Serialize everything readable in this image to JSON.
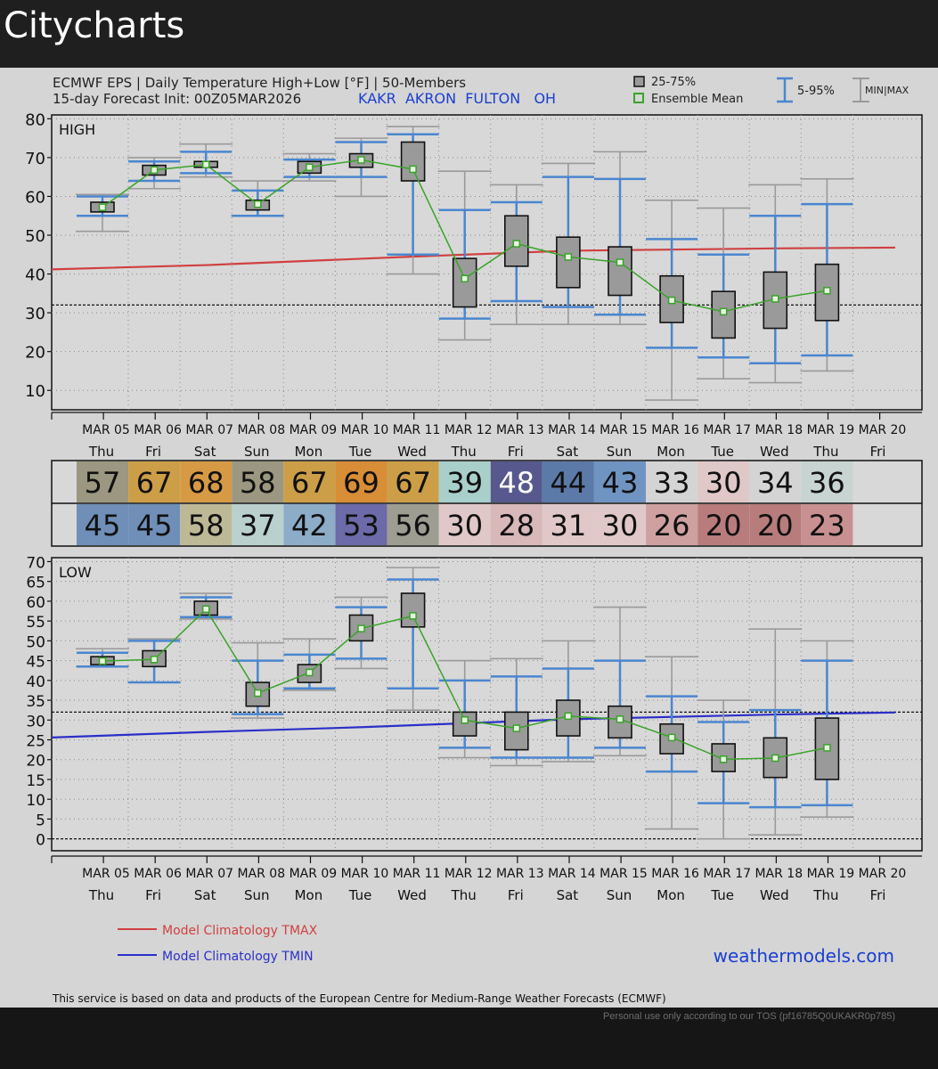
{
  "app": {
    "title": "Citycharts"
  },
  "header": {
    "line1": "ECMWF EPS | Daily Temperature High+Low [°F] | 50-Members",
    "line2": "15-day Forecast Init: 00Z05MAR2026",
    "station": "KAKR  AKRON  FULTON   OH"
  },
  "legend": {
    "box": "25-75%",
    "mean": "Ensemble Mean",
    "whisker": "5-95%",
    "minmax": "MIN|MAX"
  },
  "colors": {
    "mean": "#3aa32a",
    "box": "#9a9a9a",
    "whisker": "#4a86cf",
    "minmax": "#9a9a9a",
    "tmax": "#d04040",
    "tmin": "#2a30c8",
    "weekend": "#1a3fd0"
  },
  "days": {
    "dates": [
      "MAR 05",
      "MAR 06",
      "MAR 07",
      "MAR 08",
      "MAR 09",
      "MAR 10",
      "MAR 11",
      "MAR 12",
      "MAR 13",
      "MAR 14",
      "MAR 15",
      "MAR 16",
      "MAR 17",
      "MAR 18",
      "MAR 19",
      "MAR 20"
    ],
    "weekdays": [
      "Thu",
      "Fri",
      "Sat",
      "Sun",
      "Mon",
      "Tue",
      "Wed",
      "Thu",
      "Fri",
      "Sat",
      "Sun",
      "Mon",
      "Tue",
      "Wed",
      "Thu",
      "Fri"
    ]
  },
  "table": {
    "high": [
      "57",
      "67",
      "68",
      "58",
      "67",
      "69",
      "67",
      "39",
      "48",
      "44",
      "43",
      "33",
      "30",
      "34",
      "36"
    ],
    "high_colors": [
      "#9b9780",
      "#cc9e48",
      "#d69a44",
      "#9b9780",
      "#cc9e48",
      "#d88d37",
      "#cc9e48",
      "#a9cfca",
      "#57598e",
      "#5c7aa8",
      "#6f94c2",
      "#d4d4d4",
      "#e0c8c8",
      "#d4d4d4",
      "#c7d4d2"
    ],
    "low": [
      "45",
      "45",
      "58",
      "37",
      "42",
      "53",
      "56",
      "30",
      "28",
      "31",
      "30",
      "26",
      "20",
      "20",
      "23"
    ],
    "low_colors": [
      "#6f8fb8",
      "#6f8fb8",
      "#bdb896",
      "#b9d0cc",
      "#8cacc8",
      "#6c6aa8",
      "#9d9d92",
      "#e0c8c8",
      "#d8b8b8",
      "#e0c8c8",
      "#e0c8c8",
      "#cfa0a0",
      "#b87c7c",
      "#b87c7c",
      "#c89090"
    ]
  },
  "chart_data": [
    {
      "type": "box",
      "title": "HIGH",
      "ylim": [
        5,
        81
      ],
      "yticks": [
        10,
        20,
        30,
        40,
        50,
        60,
        70,
        80
      ],
      "reference_line": 32,
      "categories": [
        "MAR 05",
        "MAR 06",
        "MAR 07",
        "MAR 08",
        "MAR 09",
        "MAR 10",
        "MAR 11",
        "MAR 12",
        "MAR 13",
        "MAR 14",
        "MAR 15",
        "MAR 16",
        "MAR 17",
        "MAR 18",
        "MAR 19",
        "MAR 20"
      ],
      "series": [
        {
          "name": "MIN",
          "values": [
            51,
            62,
            65,
            55,
            64,
            60,
            40,
            23,
            27,
            27,
            27,
            7.5,
            13,
            12,
            15
          ]
        },
        {
          "name": "5%",
          "values": [
            55,
            64,
            66,
            55,
            65,
            65,
            45,
            28.5,
            33,
            31.5,
            29.5,
            21,
            18.5,
            17,
            19
          ]
        },
        {
          "name": "25%",
          "values": [
            56,
            65.5,
            67.5,
            56.5,
            66,
            67.5,
            64,
            31.5,
            42,
            36.5,
            34.5,
            27.5,
            23.5,
            26,
            28
          ]
        },
        {
          "name": "Ensemble Mean",
          "values": [
            57.2,
            66.8,
            68.2,
            58,
            67.5,
            69.4,
            67,
            38.8,
            47.8,
            44.4,
            43,
            33.2,
            30.3,
            33.6,
            35.7
          ]
        },
        {
          "name": "75%",
          "values": [
            58.5,
            68,
            69,
            59,
            69,
            71,
            74,
            44,
            55,
            49.5,
            47,
            39.5,
            35.5,
            40.5,
            42.5
          ]
        },
        {
          "name": "95%",
          "values": [
            60,
            69,
            71.5,
            61.5,
            69.5,
            74,
            76,
            56.5,
            58.5,
            65,
            64.5,
            49,
            45,
            55,
            58
          ]
        },
        {
          "name": "MAX",
          "values": [
            60.5,
            70,
            73.5,
            64,
            71,
            75,
            78,
            66.5,
            63,
            68.5,
            71.5,
            59,
            57,
            63,
            64.5
          ]
        }
      ],
      "climatology": {
        "name": "Model Climatology TMAX",
        "x_day": [
          0,
          3,
          7,
          10,
          14,
          16.3
        ],
        "values": [
          41.2,
          42.3,
          44.5,
          46,
          46.6,
          46.8
        ]
      }
    },
    {
      "type": "box",
      "title": "LOW",
      "ylim": [
        -3,
        71
      ],
      "yticks": [
        0,
        5,
        10,
        15,
        20,
        25,
        30,
        35,
        40,
        45,
        50,
        55,
        60,
        65,
        70
      ],
      "reference_line": 32,
      "zero_line": 0,
      "categories": [
        "MAR 05",
        "MAR 06",
        "MAR 07",
        "MAR 08",
        "MAR 09",
        "MAR 10",
        "MAR 11",
        "MAR 12",
        "MAR 13",
        "MAR 14",
        "MAR 15",
        "MAR 16",
        "MAR 17",
        "MAR 18",
        "MAR 19",
        "MAR 20"
      ],
      "series": [
        {
          "name": "MIN",
          "values": [
            43.5,
            39.5,
            55.5,
            30.5,
            37.5,
            43,
            32.5,
            20.5,
            18.5,
            19.5,
            21,
            2.5,
            0,
            1,
            5.5
          ]
        },
        {
          "name": "5%",
          "values": [
            43.5,
            39.5,
            56,
            31.5,
            38,
            45.5,
            38,
            23,
            20.5,
            20.5,
            23,
            17,
            9,
            8,
            8.5
          ]
        },
        {
          "name": "25%",
          "values": [
            44,
            43.5,
            56.5,
            33.5,
            39.5,
            50,
            53.5,
            26,
            22.5,
            26,
            25.5,
            21.5,
            17,
            15.5,
            15
          ]
        },
        {
          "name": "Ensemble Mean",
          "values": [
            44.9,
            45.3,
            58,
            36.8,
            42,
            53.1,
            56.3,
            30,
            27.9,
            31,
            30.2,
            25.6,
            20.1,
            20.4,
            23
          ]
        },
        {
          "name": "75%",
          "values": [
            46,
            47.5,
            60,
            39.5,
            44,
            56.5,
            62,
            32,
            32,
            35,
            33.5,
            29,
            24,
            25.5,
            30.5
          ]
        },
        {
          "name": "95%",
          "values": [
            47,
            50,
            61,
            45,
            46.5,
            58.5,
            65.5,
            40,
            41,
            43,
            45,
            36,
            29.5,
            32.5,
            45
          ]
        },
        {
          "name": "MAX",
          "values": [
            48,
            50.5,
            62,
            49.5,
            50.5,
            61,
            68.5,
            45,
            45.5,
            50,
            58.5,
            46,
            35,
            53,
            50
          ]
        }
      ],
      "climatology": {
        "name": "Model Climatology TMIN",
        "x_day": [
          0,
          3,
          6,
          10,
          14,
          16.3
        ],
        "values": [
          25.6,
          27,
          28.2,
          30.2,
          31.4,
          31.9
        ]
      }
    }
  ],
  "footer": {
    "tmax_label": "Model Climatology TMAX",
    "tmin_label": "Model Climatology TMIN",
    "site": "weathermodels.com",
    "disclaimer": "This service is based on data and products of the European Centre for Medium-Range Weather Forecasts (ECMWF)",
    "tos": "Personal use only according to our TOS (pf16785Q0UKAKR0p785)"
  }
}
